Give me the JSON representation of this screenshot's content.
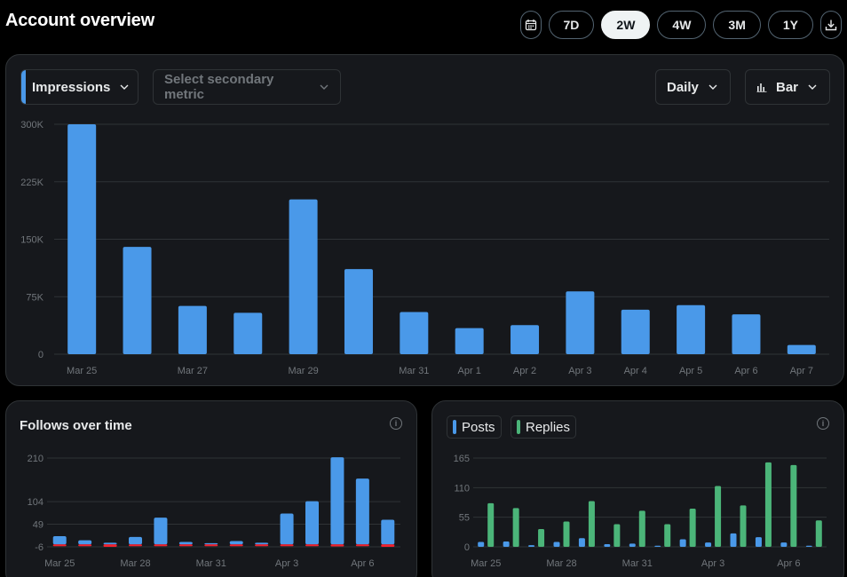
{
  "header": {
    "title": "Account overview"
  },
  "range": {
    "calendar_icon": "calendar-icon",
    "options": [
      "7D",
      "2W",
      "4W",
      "3M",
      "1Y"
    ],
    "selected": "2W",
    "download_icon": "download-icon"
  },
  "main": {
    "primary_metric": "Impressions",
    "secondary_placeholder": "Select secondary metric",
    "period": "Daily",
    "chart_type": "Bar"
  },
  "follows": {
    "title": "Follows over time"
  },
  "posts": {
    "legend_posts": "Posts",
    "legend_replies": "Replies"
  },
  "colors": {
    "blue": "#4a99e9",
    "green": "#4bb579",
    "red": "#f4212e",
    "grid": "#2f3336",
    "axis_text": "#71767b"
  },
  "chart_data": [
    {
      "type": "bar",
      "title": "Impressions",
      "categories": [
        "Mar 25",
        "Mar 26",
        "Mar 27",
        "Mar 28",
        "Mar 29",
        "Mar 30",
        "Mar 31",
        "Apr 1",
        "Apr 2",
        "Apr 3",
        "Apr 4",
        "Apr 5",
        "Apr 6",
        "Apr 7"
      ],
      "tick_labels": [
        "Mar 25",
        "",
        "Mar 27",
        "",
        "Mar 29",
        "",
        "Mar 31",
        "Apr 1",
        "Apr 2",
        "Apr 3",
        "Apr 4",
        "Apr 5",
        "Apr 6",
        "Apr 7"
      ],
      "values": [
        300000,
        140000,
        63000,
        54000,
        202000,
        111000,
        55000,
        34000,
        38000,
        82000,
        58000,
        64000,
        52000,
        12000
      ],
      "yticks": [
        0,
        75000,
        150000,
        225000,
        300000
      ],
      "ytick_labels": [
        "0",
        "75K",
        "150K",
        "225K",
        "300K"
      ],
      "ylim": [
        0,
        300000
      ],
      "grid": true
    },
    {
      "type": "bar",
      "title": "Follows over time",
      "categories": [
        "Mar 25",
        "Mar 26",
        "Mar 27",
        "Mar 28",
        "Mar 29",
        "Mar 30",
        "Mar 31",
        "Apr 1",
        "Apr 2",
        "Apr 3",
        "Apr 4",
        "Apr 5",
        "Apr 6",
        "Apr 7"
      ],
      "tick_labels": [
        "Mar 25",
        "",
        "",
        "Mar 28",
        "",
        "",
        "Mar 31",
        "",
        "",
        "Apr 3",
        "",
        "",
        "Apr 6",
        ""
      ],
      "series": [
        {
          "name": "Follows",
          "color": "blue",
          "values": [
            20,
            10,
            4,
            18,
            65,
            6,
            3,
            8,
            4,
            75,
            105,
            212,
            160,
            60
          ]
        },
        {
          "name": "Unfollows",
          "color": "red",
          "values": [
            -3,
            -3,
            -6,
            -4,
            -3,
            -3,
            -2,
            -3,
            -3,
            -3,
            -4,
            -5,
            -4,
            -6
          ]
        }
      ],
      "yticks": [
        -6,
        49,
        104,
        210
      ],
      "ylim": [
        -6,
        210
      ],
      "grid": true
    },
    {
      "type": "bar",
      "title": "Posts and Replies",
      "categories": [
        "Mar 25",
        "Mar 26",
        "Mar 27",
        "Mar 28",
        "Mar 29",
        "Mar 30",
        "Mar 31",
        "Apr 1",
        "Apr 2",
        "Apr 3",
        "Apr 4",
        "Apr 5",
        "Apr 6",
        "Apr 7"
      ],
      "tick_labels": [
        "Mar 25",
        "",
        "",
        "Mar 28",
        "",
        "",
        "Mar 31",
        "",
        "",
        "Apr 3",
        "",
        "",
        "Apr 6",
        ""
      ],
      "series": [
        {
          "name": "Posts",
          "color": "blue",
          "values": [
            9,
            10,
            3,
            9,
            16,
            5,
            6,
            2,
            14,
            8,
            25,
            18,
            8,
            2
          ]
        },
        {
          "name": "Replies",
          "color": "green",
          "values": [
            81,
            72,
            33,
            47,
            85,
            42,
            67,
            42,
            71,
            113,
            77,
            157,
            152,
            49
          ]
        }
      ],
      "yticks": [
        0,
        55,
        110,
        165
      ],
      "ylim": [
        0,
        165
      ],
      "grid": true
    }
  ]
}
